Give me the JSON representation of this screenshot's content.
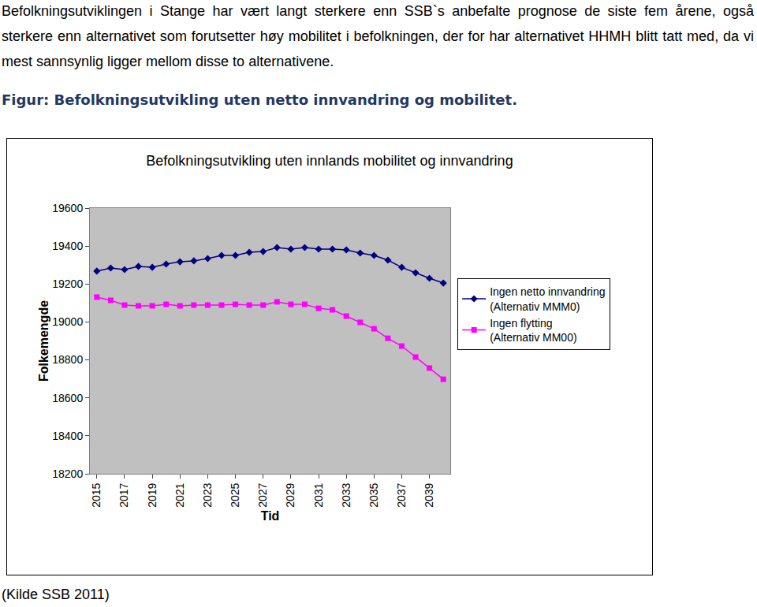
{
  "document": {
    "paragraph": "Befolkningsutviklingen i Stange har vært langt sterkere enn SSB`s anbefalte prognose de siste fem årene, også sterkere enn alternativet som forutsetter høy mobilitet i befolkningen, der for har alternativet HHMH blitt tatt med, da vi mest sannsynlig ligger mellom disse to alternativene.",
    "figure_caption": "Figur: Befolkningsutvikling uten netto innvandring og mobilitet.",
    "source": "(Kilde SSB 2011)"
  },
  "chart_data": {
    "type": "line",
    "title": "Befolkningsutvikling uten innlands mobilitet og innvandring",
    "x_label": "Tid",
    "y_label": "Folkemengde",
    "x": [
      2015,
      2016,
      2017,
      2018,
      2019,
      2020,
      2021,
      2022,
      2023,
      2024,
      2025,
      2026,
      2027,
      2028,
      2029,
      2030,
      2031,
      2032,
      2033,
      2034,
      2035,
      2036,
      2037,
      2038,
      2039,
      2040
    ],
    "series": [
      {
        "name": "Ingen netto innvandring (Alternativ MMM0)",
        "color": "#000080",
        "marker": "diamond",
        "values": [
          19268,
          19284,
          19276,
          19293,
          19288,
          19305,
          19317,
          19322,
          19334,
          19351,
          19351,
          19367,
          19371,
          19392,
          19384,
          19392,
          19384,
          19384,
          19380,
          19363,
          19351,
          19326,
          19288,
          19259,
          19230,
          19205
        ]
      },
      {
        "name": "Ingen flytting (Alternativ MM00)",
        "color": "#ff00ff",
        "marker": "square",
        "values": [
          19131,
          19114,
          19089,
          19085,
          19085,
          19093,
          19085,
          19089,
          19089,
          19089,
          19093,
          19089,
          19089,
          19106,
          19093,
          19093,
          19072,
          19064,
          19031,
          18998,
          18964,
          18914,
          18873,
          18815,
          18757,
          18698
        ]
      }
    ],
    "xlim": [
      2014.5,
      2040.5
    ],
    "xticks": [
      2015,
      2017,
      2019,
      2021,
      2023,
      2025,
      2027,
      2029,
      2031,
      2033,
      2035,
      2037,
      2039
    ],
    "ylim": [
      18200,
      19600
    ],
    "yticks": [
      18200,
      18400,
      18600,
      18800,
      19000,
      19200,
      19400,
      19600
    ],
    "grid": false,
    "legend": "right"
  }
}
